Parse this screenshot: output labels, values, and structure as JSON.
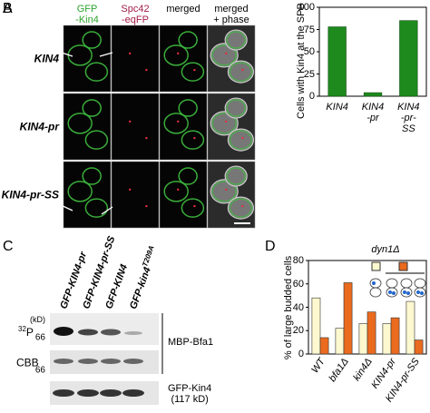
{
  "panel_a": {
    "label": "A",
    "columns": [
      "GFP\n-Kin4",
      "Spc42\n-eqFP",
      "merged",
      "merged\n+ phase"
    ],
    "rows": [
      "KIN4",
      "KIN4-pr",
      "KIN4-pr-SS"
    ]
  },
  "panel_c": {
    "label": "C",
    "lanes": [
      {
        "text": "GFP-KIN4-pr"
      },
      {
        "text": "GFP-KIN4-pr-SS"
      },
      {
        "text": "GFP-KIN4"
      },
      {
        "text": "GFP-kin4",
        "sup": "T209A"
      }
    ],
    "kd_label": "(kD)",
    "isotope": "32",
    "p_label": "P",
    "cbb_label": "CBB",
    "markers": [
      66,
      66
    ],
    "blot_labels": [
      "MBP-Bfa1",
      "GFP-Kin4\n(117 kD)"
    ]
  },
  "chart_data": [
    {
      "type": "bar",
      "panel_label": "B",
      "ylabel": "Cells with Kin4 at the SPB (%)",
      "categories": [
        "KIN4",
        "KIN4\n-pr",
        "KIN4\n-pr-SS"
      ],
      "values": [
        78,
        4,
        85
      ],
      "color": "#1e8a1e",
      "ylim": [
        0,
        100
      ],
      "yticks": [
        0,
        25,
        50,
        75,
        100
      ]
    },
    {
      "type": "bar",
      "panel_label": "D",
      "title": "dyn1Δ",
      "ylabel": "% of large budded cells",
      "categories": [
        "WT",
        "bfa1Δ",
        "kin4Δ",
        "KIN4-pr",
        "KIN4-pr-SS"
      ],
      "series": [
        {
          "color": "#fdf8cf",
          "values": [
            48,
            22,
            26,
            26,
            45
          ]
        },
        {
          "color": "#ea6a1e",
          "values": [
            14,
            61,
            36,
            31,
            12
          ]
        }
      ],
      "ylim": [
        0,
        80
      ],
      "yticks": [
        0,
        20,
        40,
        60,
        80
      ]
    }
  ]
}
